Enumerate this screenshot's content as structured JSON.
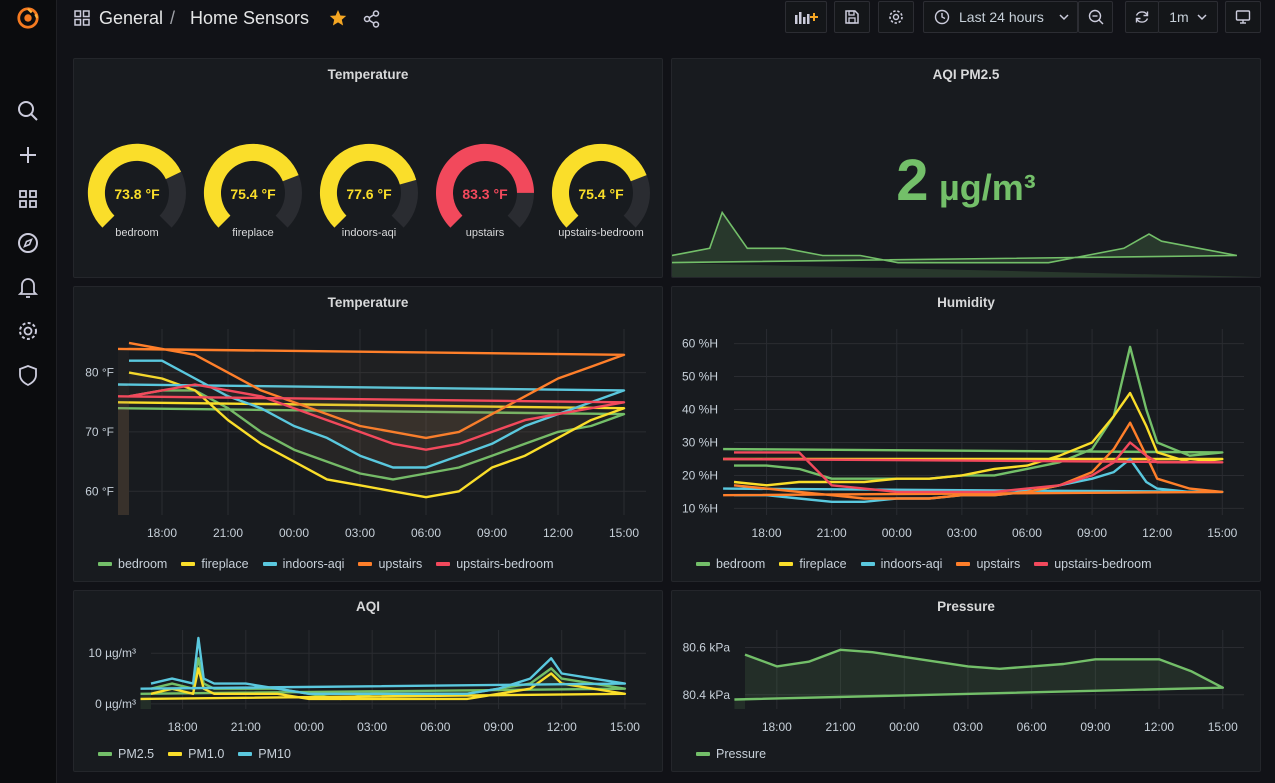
{
  "breadcrumb": {
    "folder": "General",
    "separator": "/",
    "dashboard": "Home Sensors"
  },
  "toolbar": {
    "time_range": "Last 24 hours",
    "refresh_interval": "1m"
  },
  "colors": {
    "green": "#73bf69",
    "yellow": "#fade2a",
    "blue": "#5ac8de",
    "orange": "#ff7f2a",
    "red": "#f2495c",
    "accent_star": "#f5a623"
  },
  "panels": {
    "gauges": {
      "title": "Temperature",
      "items": [
        {
          "label": "bedroom",
          "value": "73.8 °F",
          "v": 73.8,
          "color": "#fade2a"
        },
        {
          "label": "fireplace",
          "value": "75.4 °F",
          "v": 75.4,
          "color": "#fade2a"
        },
        {
          "label": "indoors-aqi",
          "value": "77.6 °F",
          "v": 77.6,
          "color": "#fade2a"
        },
        {
          "label": "upstairs",
          "value": "83.3 °F",
          "v": 83.3,
          "color": "#f2495c"
        },
        {
          "label": "upstairs-bedroom",
          "value": "75.4 °F",
          "v": 75.4,
          "color": "#fade2a"
        }
      ]
    },
    "aqi_stat": {
      "title": "AQI PM2.5",
      "value": "2",
      "unit": "µg/m³"
    },
    "temperature": {
      "title": "Temperature",
      "legend": [
        "bedroom",
        "fireplace",
        "indoors-aqi",
        "upstairs",
        "upstairs-bedroom"
      ]
    },
    "humidity": {
      "title": "Humidity",
      "legend": [
        "bedroom",
        "fireplace",
        "indoors-aqi",
        "upstairs",
        "upstairs-bedroom"
      ]
    },
    "aqi": {
      "title": "AQI",
      "legend": [
        "PM2.5",
        "PM1.0",
        "PM10"
      ]
    },
    "pressure": {
      "title": "Pressure",
      "legend": [
        "Pressure"
      ]
    }
  },
  "chart_data": [
    {
      "type": "line",
      "title": "Temperature",
      "x": [
        "16:30",
        "18:00",
        "19:30",
        "21:00",
        "22:30",
        "00:00",
        "01:30",
        "03:00",
        "04:30",
        "06:00",
        "07:30",
        "09:00",
        "10:30",
        "12:00",
        "13:30",
        "15:00",
        "16:00"
      ],
      "xticks": [
        "18:00",
        "21:00",
        "00:00",
        "03:00",
        "06:00",
        "09:00",
        "12:00",
        "15:00"
      ],
      "yticks": [
        "60 °F",
        "70 °F",
        "80 °F"
      ],
      "ylim": [
        56,
        86
      ],
      "series": [
        {
          "name": "bedroom",
          "color": "#73bf69",
          "values": [
            76,
            77,
            77,
            74,
            70,
            67,
            65,
            63,
            62,
            63,
            64,
            66,
            68,
            70,
            71,
            73,
            74
          ]
        },
        {
          "name": "fireplace",
          "color": "#fade2a",
          "values": [
            80,
            79,
            77,
            72,
            68,
            65,
            62,
            61,
            60,
            59,
            60,
            64,
            66,
            69,
            72,
            74,
            75
          ]
        },
        {
          "name": "indoors-aqi",
          "color": "#5ac8de",
          "values": [
            82,
            82,
            79,
            76,
            74,
            71,
            69,
            66,
            64,
            64,
            66,
            68,
            71,
            73,
            75,
            77,
            78
          ]
        },
        {
          "name": "upstairs",
          "color": "#ff7f2a",
          "values": [
            85,
            84,
            83,
            80,
            77,
            75,
            73,
            71,
            70,
            69,
            70,
            73,
            76,
            79,
            81,
            83,
            84
          ]
        },
        {
          "name": "upstairs-bedroom",
          "color": "#f2495c",
          "values": [
            76,
            77,
            78,
            77,
            76,
            74,
            72,
            70,
            68,
            67,
            68,
            70,
            72,
            73,
            74,
            75,
            76
          ]
        }
      ]
    },
    {
      "type": "line",
      "title": "Humidity",
      "x": [
        "16:30",
        "18:00",
        "19:30",
        "21:00",
        "22:30",
        "00:00",
        "01:30",
        "03:00",
        "04:30",
        "06:00",
        "07:30",
        "09:00",
        "10:00",
        "10:45",
        "11:30",
        "12:00",
        "13:30",
        "15:00",
        "16:00"
      ],
      "xticks": [
        "18:00",
        "21:00",
        "00:00",
        "03:00",
        "06:00",
        "09:00",
        "12:00",
        "15:00"
      ],
      "yticks": [
        "10 %H",
        "20 %H",
        "30 %H",
        "40 %H",
        "50 %H",
        "60 %H"
      ],
      "ylim": [
        8,
        62
      ],
      "series": [
        {
          "name": "bedroom",
          "color": "#73bf69",
          "values": [
            23,
            23,
            22,
            19,
            19,
            19,
            19,
            20,
            20,
            22,
            24,
            28,
            38,
            59,
            40,
            30,
            26,
            27,
            28
          ]
        },
        {
          "name": "fireplace",
          "color": "#fade2a",
          "values": [
            18,
            17,
            18,
            18,
            18,
            19,
            19,
            20,
            22,
            23,
            26,
            30,
            38,
            45,
            35,
            27,
            24,
            25,
            25
          ]
        },
        {
          "name": "indoors-aqi",
          "color": "#5ac8de",
          "values": [
            14,
            14,
            13,
            12,
            12,
            13,
            13,
            14,
            14,
            15,
            17,
            19,
            21,
            25,
            18,
            16,
            15,
            15,
            16
          ]
        },
        {
          "name": "upstairs",
          "color": "#ff7f2a",
          "values": [
            17,
            16,
            15,
            14,
            13,
            13,
            13,
            14,
            14,
            15,
            17,
            21,
            28,
            36,
            26,
            19,
            16,
            15,
            14
          ]
        },
        {
          "name": "upstairs-bedroom",
          "color": "#f2495c",
          "values": [
            27,
            27,
            27,
            17,
            16,
            15,
            15,
            15,
            15,
            16,
            17,
            20,
            24,
            30,
            26,
            24,
            24,
            24,
            25
          ]
        }
      ]
    },
    {
      "type": "line",
      "title": "AQI",
      "x": [
        "16:30",
        "17:30",
        "18:30",
        "18:45",
        "19:00",
        "19:30",
        "21:00",
        "22:30",
        "00:00",
        "01:30",
        "03:00",
        "04:30",
        "06:00",
        "07:30",
        "09:00",
        "10:30",
        "11:30",
        "12:00",
        "13:30",
        "15:00",
        "16:00"
      ],
      "xticks": [
        "18:00",
        "21:00",
        "00:00",
        "03:00",
        "06:00",
        "09:00",
        "12:00",
        "15:00"
      ],
      "yticks": [
        "0 µg/m³",
        "10 µg/m³"
      ],
      "ylim": [
        -1,
        13
      ],
      "series": [
        {
          "name": "PM2.5",
          "color": "#73bf69",
          "values": [
            3,
            4,
            3,
            9,
            4,
            3,
            3,
            3,
            2,
            1,
            2,
            2,
            2,
            2,
            3,
            4,
            7,
            5,
            4,
            3,
            2
          ]
        },
        {
          "name": "PM1.0",
          "color": "#fade2a",
          "values": [
            2,
            3,
            2,
            7,
            3,
            2,
            2,
            2,
            1,
            1,
            1,
            1,
            1,
            1,
            2,
            3,
            6,
            4,
            3,
            2,
            1
          ]
        },
        {
          "name": "PM10",
          "color": "#5ac8de",
          "values": [
            4,
            5,
            4,
            13,
            5,
            4,
            4,
            3,
            2,
            2,
            2,
            2,
            2,
            2,
            3,
            5,
            9,
            6,
            5,
            4,
            3
          ]
        }
      ]
    },
    {
      "type": "area",
      "title": "Pressure",
      "x": [
        "16:30",
        "18:00",
        "19:30",
        "21:00",
        "22:30",
        "00:00",
        "01:30",
        "03:00",
        "04:30",
        "06:00",
        "07:30",
        "09:00",
        "10:30",
        "12:00",
        "13:30",
        "15:00",
        "16:00"
      ],
      "xticks": [
        "18:00",
        "21:00",
        "00:00",
        "03:00",
        "06:00",
        "09:00",
        "12:00",
        "15:00"
      ],
      "yticks": [
        "80.4 kPa",
        "80.6 kPa"
      ],
      "ylim": [
        80.34,
        80.64
      ],
      "series": [
        {
          "name": "Pressure",
          "color": "#73bf69",
          "values": [
            80.57,
            80.52,
            80.54,
            80.59,
            80.58,
            80.56,
            80.54,
            80.52,
            80.51,
            80.52,
            80.53,
            80.55,
            80.55,
            80.55,
            80.5,
            80.43,
            80.38
          ]
        }
      ]
    },
    {
      "type": "area",
      "title": "AQI PM2.5",
      "x": [
        "16:30",
        "18:00",
        "18:30",
        "19:30",
        "21:00",
        "22:30",
        "00:00",
        "01:30",
        "03:00",
        "04:30",
        "06:00",
        "07:30",
        "09:00",
        "10:30",
        "11:30",
        "12:00",
        "13:30",
        "15:00",
        "16:00"
      ],
      "series": [
        {
          "name": "PM2.5",
          "color": "#73bf69",
          "values": [
            3,
            4,
            9,
            4,
            4,
            3,
            3,
            2,
            2,
            2,
            2,
            2,
            3,
            4,
            6,
            5,
            4,
            3,
            2
          ]
        }
      ]
    }
  ]
}
